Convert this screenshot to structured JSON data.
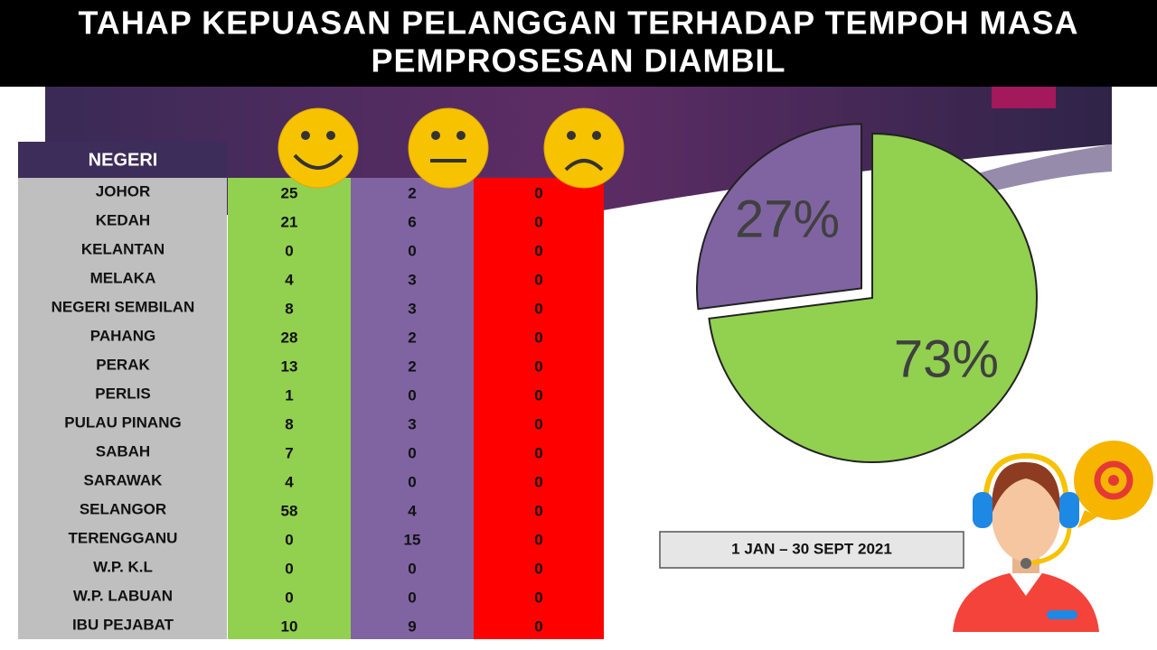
{
  "title": [
    "TAHAP KEPUASAN PELANGGAN TERHADAP TEMPOH MASA",
    "PEMPROSESAN DIAMBIL"
  ],
  "table": {
    "header": "NEGERI",
    "rows": [
      [
        "JOHOR",
        25,
        2,
        0
      ],
      [
        "KEDAH",
        21,
        6,
        0
      ],
      [
        "KELANTAN",
        0,
        0,
        0
      ],
      [
        "MELAKA",
        4,
        3,
        0
      ],
      [
        "NEGERI SEMBILAN",
        8,
        3,
        0
      ],
      [
        "PAHANG",
        28,
        2,
        0
      ],
      [
        "PERAK",
        13,
        2,
        0
      ],
      [
        "PERLIS",
        1,
        0,
        0
      ],
      [
        "PULAU PINANG",
        8,
        3,
        0
      ],
      [
        "SABAH",
        7,
        0,
        0
      ],
      [
        "SARAWAK",
        4,
        0,
        0
      ],
      [
        "SELANGOR",
        58,
        4,
        0
      ],
      [
        "TERENGGANU",
        0,
        15,
        0
      ],
      [
        "W.P. K.L",
        0,
        0,
        0
      ],
      [
        "W.P. LABUAN",
        0,
        0,
        0
      ],
      [
        "IBU PEJABAT",
        10,
        9,
        0
      ]
    ]
  },
  "chart_data": {
    "type": "pie",
    "values": [
      73,
      27
    ],
    "value_labels": [
      "73%",
      "27%"
    ],
    "colors": [
      "#92d050",
      "#8064a2"
    ]
  },
  "date_range": "1 JAN – 30 SEPT 2021"
}
